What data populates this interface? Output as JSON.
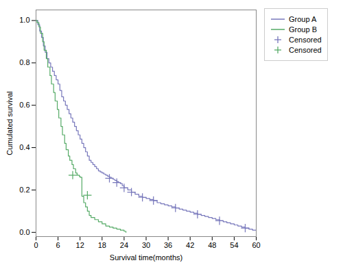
{
  "chart_data": {
    "type": "line",
    "xlabel": "Survival time(months)",
    "ylabel": "Cumulated survival",
    "xlim": [
      0,
      60
    ],
    "ylim": [
      -0.02,
      1.05
    ],
    "xticks": [
      0,
      6,
      12,
      18,
      24,
      30,
      36,
      42,
      48,
      54,
      60
    ],
    "yticks": [
      {
        "value": 0.0,
        "label": "0.0"
      },
      0.2,
      0.4,
      0.6,
      0.8,
      {
        "value": 1.0,
        "label": "1.0"
      }
    ],
    "grid": false,
    "legend": "right",
    "series": [
      {
        "name": "Group A",
        "type": "step",
        "color": "#7777bb",
        "x": [
          0,
          0.5,
          1,
          1.5,
          2,
          2.5,
          3,
          3.5,
          4,
          4.5,
          5,
          5.5,
          6,
          6.5,
          7,
          7.5,
          8,
          8.5,
          9,
          9.5,
          10,
          10.5,
          11,
          11.5,
          12,
          12.5,
          13,
          13.5,
          14,
          14.5,
          15,
          15.5,
          16,
          16.5,
          17,
          17.5,
          18,
          18.5,
          19,
          19.5,
          20,
          20.5,
          21,
          21.5,
          22,
          22.5,
          23,
          23.5,
          24,
          25,
          26,
          27,
          28,
          29,
          30,
          31,
          32,
          33,
          34,
          35,
          36,
          37,
          38,
          39,
          40,
          41,
          42,
          43,
          44,
          45,
          46,
          47,
          48,
          49,
          50,
          51,
          52,
          53,
          54,
          55,
          56,
          57,
          58,
          59,
          60
        ],
        "values": [
          1.0,
          0.98,
          0.95,
          0.92,
          0.88,
          0.85,
          0.82,
          0.8,
          0.78,
          0.76,
          0.74,
          0.72,
          0.7,
          0.67,
          0.64,
          0.62,
          0.6,
          0.58,
          0.56,
          0.54,
          0.52,
          0.5,
          0.48,
          0.46,
          0.44,
          0.42,
          0.4,
          0.38,
          0.36,
          0.34,
          0.33,
          0.32,
          0.31,
          0.3,
          0.29,
          0.285,
          0.28,
          0.275,
          0.27,
          0.265,
          0.26,
          0.255,
          0.25,
          0.245,
          0.24,
          0.235,
          0.23,
          0.22,
          0.21,
          0.2,
          0.19,
          0.18,
          0.17,
          0.165,
          0.16,
          0.155,
          0.15,
          0.14,
          0.135,
          0.13,
          0.125,
          0.12,
          0.115,
          0.11,
          0.105,
          0.1,
          0.095,
          0.09,
          0.085,
          0.08,
          0.075,
          0.07,
          0.065,
          0.06,
          0.055,
          0.05,
          0.045,
          0.04,
          0.035,
          0.03,
          0.025,
          0.02,
          0.015,
          0.01,
          0.01
        ]
      },
      {
        "name": "Group B",
        "type": "step",
        "color": "#55aa66",
        "x": [
          0,
          0.3,
          0.8,
          1.2,
          1.8,
          2.2,
          2.8,
          3.2,
          3.8,
          4.2,
          4.8,
          5.2,
          5.8,
          6.2,
          6.8,
          7.2,
          7.8,
          8.2,
          8.8,
          9.2,
          9.8,
          10.2,
          10.8,
          11.2,
          11.8,
          12.0,
          12.5,
          13.0,
          13.5,
          14.0,
          14.5,
          15.0,
          16.0,
          17.0,
          18.0,
          19.0,
          20.0,
          21.0,
          22.0,
          23.0,
          24.0,
          24.5
        ],
        "values": [
          1.0,
          0.99,
          0.97,
          0.94,
          0.9,
          0.86,
          0.82,
          0.78,
          0.74,
          0.7,
          0.66,
          0.62,
          0.58,
          0.54,
          0.5,
          0.46,
          0.42,
          0.39,
          0.36,
          0.34,
          0.32,
          0.3,
          0.28,
          0.27,
          0.265,
          0.26,
          0.17,
          0.14,
          0.12,
          0.1,
          0.08,
          0.07,
          0.06,
          0.05,
          0.04,
          0.03,
          0.025,
          0.02,
          0.015,
          0.01,
          0.005,
          0.0
        ]
      },
      {
        "name": "Censored",
        "type": "scatter",
        "marker": "+",
        "color": "#7777bb",
        "x": [
          20,
          22,
          24,
          26,
          29,
          32,
          38,
          44,
          50,
          57
        ],
        "values": [
          0.255,
          0.235,
          0.21,
          0.19,
          0.165,
          0.15,
          0.115,
          0.085,
          0.055,
          0.02
        ]
      },
      {
        "name": "Censored",
        "type": "scatter",
        "marker": "+",
        "color": "#55aa66",
        "x": [
          10,
          14
        ],
        "values": [
          0.27,
          0.175
        ]
      }
    ]
  }
}
